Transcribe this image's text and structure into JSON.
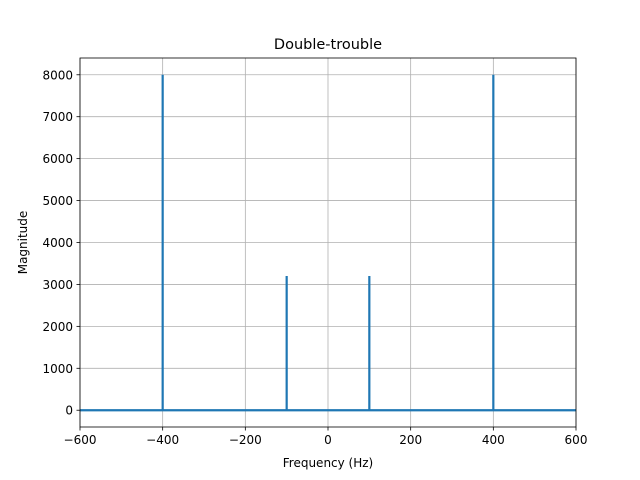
{
  "chart_data": {
    "type": "line",
    "title": "Double-trouble",
    "xlabel": "Frequency (Hz)",
    "ylabel": "Magnitude",
    "xlim": [
      -600,
      600
    ],
    "ylim": [
      -400,
      8400
    ],
    "xticks": [
      -600,
      -400,
      -200,
      0,
      200,
      400,
      600
    ],
    "xtick_labels": [
      "−600",
      "−400",
      "−200",
      "0",
      "200",
      "400",
      "600"
    ],
    "yticks": [
      0,
      1000,
      2000,
      3000,
      4000,
      5000,
      6000,
      7000,
      8000
    ],
    "ytick_labels": [
      "0",
      "1000",
      "2000",
      "3000",
      "4000",
      "5000",
      "6000",
      "7000",
      "8000"
    ],
    "grid": true,
    "series": [
      {
        "color": "#1f77b4",
        "x": [
          -600,
          -400,
          -400,
          -400,
          -100,
          -100,
          -100,
          100,
          100,
          100,
          400,
          400,
          400,
          600
        ],
        "y": [
          0,
          0,
          8000,
          0,
          0,
          3200,
          0,
          0,
          3200,
          0,
          0,
          8000,
          0,
          0
        ]
      }
    ]
  }
}
